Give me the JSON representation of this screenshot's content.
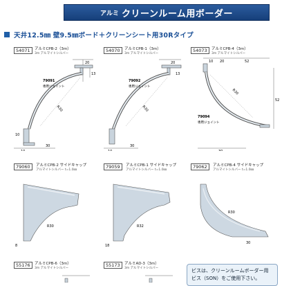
{
  "header": {
    "prefix": "アルミ",
    "title": "クリーンルーム用ボーダー"
  },
  "section": {
    "title": "天井12.5㎜ 壁9.5㎜ボード＋クリーンシート用30Rタイプ"
  },
  "profiles": [
    {
      "code": "54071",
      "name": "アルミCPB-2（3m）",
      "sub": "3m  アルマイトシルバー",
      "joint_code": "79091",
      "joint_label": "専用ジョイント",
      "dims": [
        "20",
        "13",
        "R30",
        "30",
        "10",
        "10"
      ]
    },
    {
      "code": "54070",
      "name": "アルミCPB-1（3m）",
      "sub": "3m  アルマイトシルバー",
      "joint_code": "79092",
      "joint_label": "専用ジョイント",
      "dims": [
        "20",
        "13",
        "R30",
        "30",
        "10"
      ]
    },
    {
      "code": "54073",
      "name": "アルミCPB-4（3m）",
      "sub": "3m  アルマイトシルバー",
      "joint_code": "79094",
      "joint_label": "専用ジョイント",
      "dims": [
        "10",
        "20",
        "52",
        "R30",
        "52",
        "30"
      ]
    }
  ],
  "caps": [
    {
      "code": "79060",
      "name": "アルミCPB-2 サイドキャップ",
      "sub": "アルマイトシルバー t=1.0㎜",
      "dims": [
        "R30",
        "8"
      ]
    },
    {
      "code": "79059",
      "name": "アルミCPB-1 サイドキャップ",
      "sub": "アルマイトシルバー t=1.0㎜",
      "dims": [
        "R32",
        "18"
      ]
    },
    {
      "code": "79062",
      "name": "アルミCPB-4 サイドキャップ",
      "sub": "アルマイトシルバー t=1.0㎜",
      "dims": [
        "R30",
        "30"
      ]
    }
  ],
  "bottom_items": [
    {
      "code": "55176",
      "name": "アルミCPB-6（3m）",
      "sub": "3m  アルマイトシルバー"
    },
    {
      "code": "55173",
      "name": "アルミAD-3（3m）",
      "sub": "3m  アルマイトシルバー"
    }
  ],
  "note": {
    "line1": "ビスは、クリーンルームボーダー用",
    "line2": "ビス（SON）をご使用下さい。"
  }
}
